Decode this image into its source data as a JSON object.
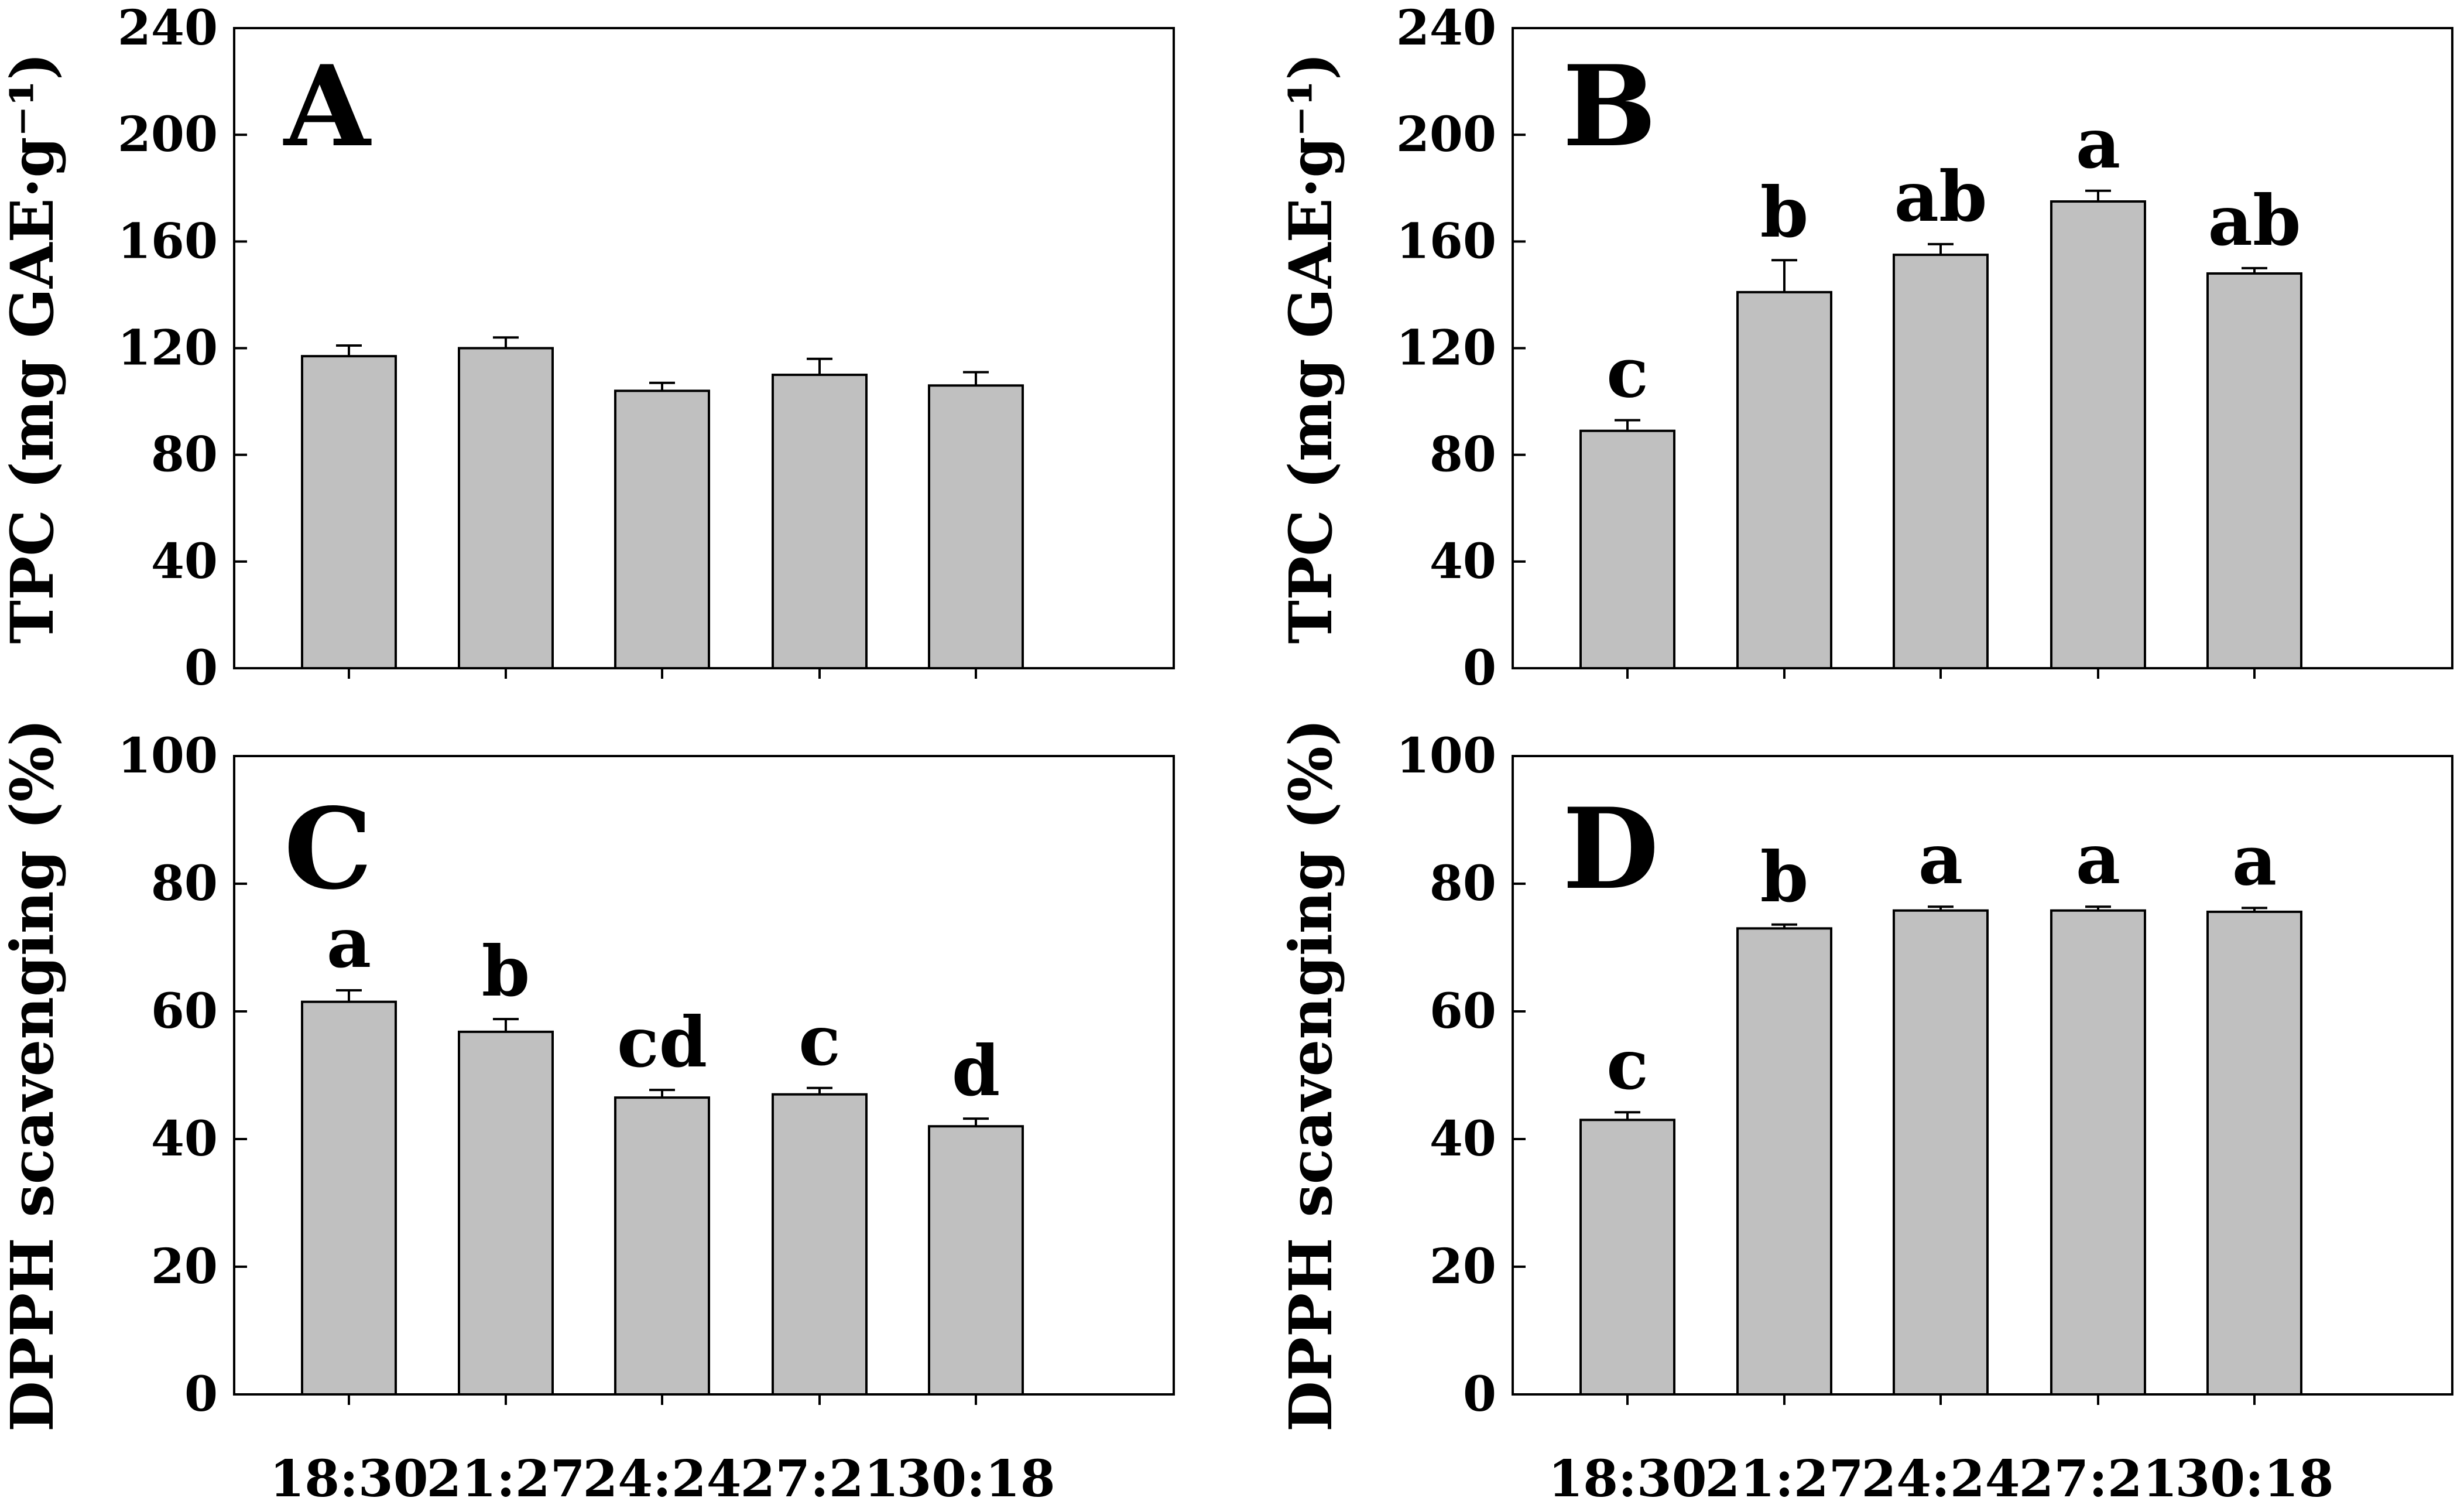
{
  "chart_data": [
    {
      "panel": "A",
      "type": "bar",
      "ylabel": "TPC (mg GAE·g⁻¹)",
      "ylim": [
        0,
        240
      ],
      "yticks": [
        0,
        40,
        80,
        120,
        160,
        200,
        240
      ],
      "categories": [
        "18:30",
        "21:27",
        "24:24",
        "27:21",
        "30:18"
      ],
      "values": [
        117,
        120,
        104,
        110,
        106
      ],
      "errors": [
        4,
        4,
        3,
        6,
        5
      ],
      "significance": [
        "",
        "",
        "",
        "",
        ""
      ],
      "bar_color": "#c0c0c0"
    },
    {
      "panel": "B",
      "type": "bar",
      "ylabel": "TPC (mg GAE·g⁻¹)",
      "ylim": [
        0,
        240
      ],
      "yticks": [
        0,
        40,
        80,
        120,
        160,
        200,
        240
      ],
      "categories": [
        "18:30",
        "21:27",
        "24:24",
        "27:21",
        "30:18"
      ],
      "values": [
        89,
        141,
        155,
        175,
        148
      ],
      "errors": [
        4,
        12,
        4,
        4,
        2
      ],
      "significance": [
        "c",
        "b",
        "ab",
        "a",
        "ab"
      ],
      "bar_color": "#c0c0c0"
    },
    {
      "panel": "C",
      "type": "bar",
      "ylabel": "DPPH scavenging (%)",
      "ylim": [
        0,
        100
      ],
      "yticks": [
        0,
        20,
        40,
        60,
        80,
        100
      ],
      "categories": [
        "18:30",
        "21:27",
        "24:24",
        "27:21",
        "30:18"
      ],
      "values": [
        61.5,
        56.8,
        46.5,
        47,
        42
      ],
      "errors": [
        1.8,
        2,
        1.2,
        1,
        1.2
      ],
      "significance": [
        "a",
        "b",
        "cd",
        "c",
        "d"
      ],
      "bar_color": "#c0c0c0"
    },
    {
      "panel": "D",
      "type": "bar",
      "ylabel": "DPPH scavenging (%)",
      "ylim": [
        0,
        100
      ],
      "yticks": [
        0,
        20,
        40,
        60,
        80,
        100
      ],
      "categories": [
        "18:30",
        "21:27",
        "24:24",
        "27:21",
        "30:18"
      ],
      "values": [
        43,
        73,
        75.8,
        75.8,
        75.6
      ],
      "errors": [
        1.2,
        0.6,
        0.6,
        0.6,
        0.6
      ],
      "significance": [
        "c",
        "b",
        "a",
        "a",
        "a"
      ],
      "bar_color": "#c0c0c0"
    }
  ]
}
